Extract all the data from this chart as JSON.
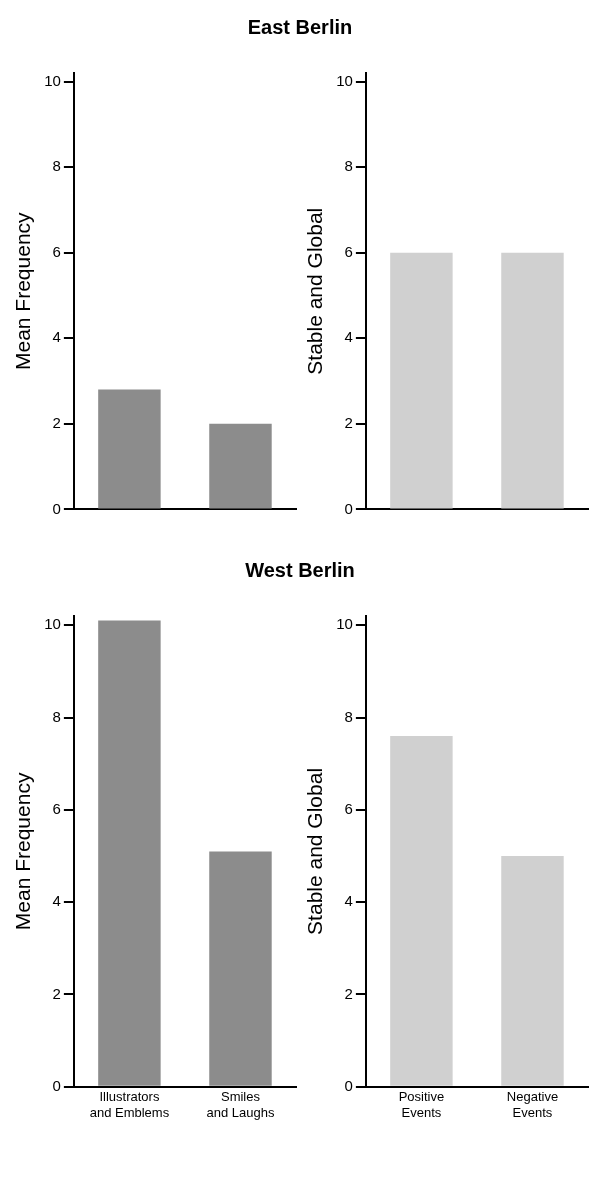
{
  "chart_data": [
    {
      "type": "bar",
      "title": "East Berlin",
      "categories": [
        null,
        null
      ],
      "ylabel": "Mean Frequency",
      "values": [
        2.8,
        2.0
      ],
      "color": "#8c8c8c",
      "ylim": [
        0,
        10.2
      ],
      "yticks": [
        0,
        2,
        4,
        6,
        8,
        10
      ],
      "grid": false,
      "legend": false
    },
    {
      "type": "bar",
      "categories": [
        null,
        null
      ],
      "ylabel": "Stable and Global",
      "values": [
        6.0,
        6.0
      ],
      "color": "#d0d0d0",
      "ylim": [
        0,
        10.2
      ],
      "yticks": [
        0,
        2,
        4,
        6,
        8,
        10
      ],
      "grid": false,
      "legend": false
    },
    {
      "type": "bar",
      "title": "West Berlin",
      "categories": [
        "Illustrators and Emblems",
        "Smiles and Laughs"
      ],
      "ylabel": "Mean Frequency",
      "values": [
        10.1,
        5.1
      ],
      "color": "#8c8c8c",
      "ylim": [
        0,
        10.2
      ],
      "yticks": [
        0,
        2,
        4,
        6,
        8,
        10
      ],
      "grid": false,
      "legend": false
    },
    {
      "type": "bar",
      "categories": [
        "Positive Events",
        "Negative Events"
      ],
      "ylabel": "Stable and Global",
      "values": [
        7.6,
        5.0
      ],
      "color": "#d0d0d0",
      "ylim": [
        0,
        10.2
      ],
      "yticks": [
        0,
        2,
        4,
        6,
        8,
        10
      ],
      "grid": false,
      "legend": false
    }
  ]
}
